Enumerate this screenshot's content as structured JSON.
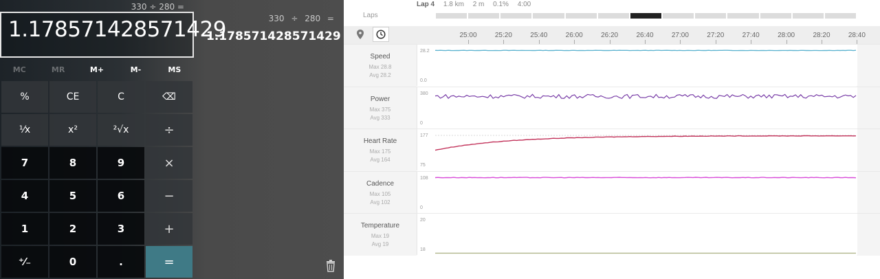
{
  "calculator": {
    "expression": "330 ÷ 280 =",
    "display": "1.178571428571429",
    "memory": [
      {
        "label": "MC",
        "enabled": false
      },
      {
        "label": "MR",
        "enabled": false
      },
      {
        "label": "M+",
        "enabled": true
      },
      {
        "label": "M-",
        "enabled": true
      },
      {
        "label": "MS",
        "enabled": true
      }
    ],
    "keys": [
      {
        "label": "%",
        "kind": "fn",
        "name": "percent-button"
      },
      {
        "label": "CE",
        "kind": "fn",
        "name": "clear-entry-button"
      },
      {
        "label": "C",
        "kind": "fn",
        "name": "clear-button"
      },
      {
        "label": "⌫",
        "kind": "fn",
        "name": "backspace-button"
      },
      {
        "label": "¹⁄x",
        "kind": "fn",
        "name": "reciprocal-button"
      },
      {
        "label": "x²",
        "kind": "fn",
        "name": "square-button"
      },
      {
        "label": "²√x",
        "kind": "fn",
        "name": "square-root-button"
      },
      {
        "label": "÷",
        "kind": "op",
        "name": "divide-button"
      },
      {
        "label": "7",
        "kind": "num",
        "name": "digit-7-button"
      },
      {
        "label": "8",
        "kind": "num",
        "name": "digit-8-button"
      },
      {
        "label": "9",
        "kind": "num",
        "name": "digit-9-button"
      },
      {
        "label": "×",
        "kind": "op",
        "name": "multiply-button"
      },
      {
        "label": "4",
        "kind": "num",
        "name": "digit-4-button"
      },
      {
        "label": "5",
        "kind": "num",
        "name": "digit-5-button"
      },
      {
        "label": "6",
        "kind": "num",
        "name": "digit-6-button"
      },
      {
        "label": "−",
        "kind": "op",
        "name": "subtract-button"
      },
      {
        "label": "1",
        "kind": "num",
        "name": "digit-1-button"
      },
      {
        "label": "2",
        "kind": "num",
        "name": "digit-2-button"
      },
      {
        "label": "3",
        "kind": "num",
        "name": "digit-3-button"
      },
      {
        "label": "+",
        "kind": "op",
        "name": "add-button"
      },
      {
        "label": "⁺⁄₋",
        "kind": "num",
        "name": "negate-button"
      },
      {
        "label": "0",
        "kind": "num",
        "name": "digit-0-button"
      },
      {
        "label": ".",
        "kind": "num",
        "name": "decimal-button"
      },
      {
        "label": "=",
        "kind": "eq",
        "name": "equals-button"
      }
    ],
    "history": {
      "expression": "330 ÷ 280 =",
      "result": "1.178571428571429"
    },
    "icons": {
      "trash": "trash-icon"
    }
  },
  "activity": {
    "lap": {
      "name": "Lap 4",
      "distance": "1.8 km",
      "duration": "2 m",
      "grade": "0.1%",
      "pace": "4:00"
    },
    "laps_label": "Laps",
    "lap_count": 13,
    "active_lap": 6,
    "icons": {
      "map": "map-pin-icon",
      "time": "clock-icon"
    },
    "time_ticks": [
      "25:00",
      "25:20",
      "25:40",
      "26:00",
      "26:20",
      "26:40",
      "27:00",
      "27:20",
      "27:40",
      "28:00",
      "28:20",
      "28:40"
    ],
    "metrics": [
      {
        "name": "Speed",
        "max": "Max 28.8",
        "avg": "Avg 28.2",
        "ytop": "28.2",
        "ybottom": "0.0",
        "color": "#5fb4d0",
        "level": 0.96,
        "noise": 0.004,
        "trend": "flat"
      },
      {
        "name": "Power",
        "max": "Max 375",
        "avg": "Avg 333",
        "ytop": "380",
        "ybottom": "0",
        "color": "#7a3fa8",
        "level": 0.88,
        "noise": 0.05,
        "trend": "flat"
      },
      {
        "name": "Heart Rate",
        "max": "Max 175",
        "avg": "Avg 164",
        "ytop": "177",
        "ybottom": "75",
        "color": "#c2325a",
        "level": 0.94,
        "noise": 0.005,
        "trend": "rise"
      },
      {
        "name": "Cadence",
        "max": "Max 105",
        "avg": "Avg 102",
        "ytop": "108",
        "ybottom": "0",
        "color": "#d84ad8",
        "level": 0.96,
        "noise": 0.006,
        "trend": "flat"
      },
      {
        "name": "Temperature",
        "max": "Max 19",
        "avg": "Avg 19",
        "ytop": "20",
        "ybottom": "18",
        "color": "#b0b58a",
        "level": 0.01,
        "noise": 0.0,
        "trend": "flat"
      }
    ]
  }
}
